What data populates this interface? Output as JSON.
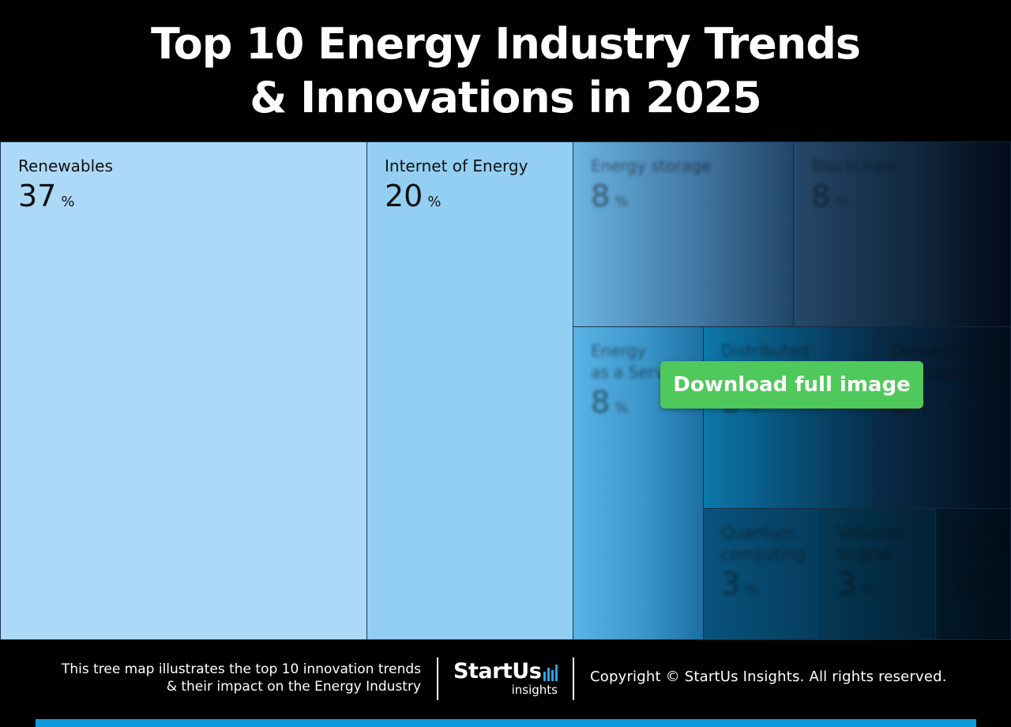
{
  "title": {
    "line1": "Top 10 Energy Industry Trends",
    "line2": "& Innovations in 2025"
  },
  "chart_data": {
    "type": "treemap",
    "value_suffix": "%",
    "items": [
      {
        "label": "Renewables",
        "value": 37,
        "color": "#acd9f7"
      },
      {
        "label": "Internet of Energy",
        "value": 20,
        "color": "#92cff3"
      },
      {
        "label": "Energy storage",
        "value": 8,
        "color": "#6cb6e4"
      },
      {
        "label": "Blockchain",
        "value": 8,
        "color": "#26486a"
      },
      {
        "label": "Energy\nas a Service",
        "value": 8,
        "color": "#52aee0"
      },
      {
        "label": "Distributed\nenergy",
        "value": 8,
        "color": "#0b6e9c"
      },
      {
        "label": "Demand-side\nmanagement",
        "value": 8,
        "color": "#0a3050"
      },
      {
        "label": "Quantum\ncomputing",
        "value": 3,
        "color": "#064a70"
      },
      {
        "label": "Vehicles-\nto-grid",
        "value": 3,
        "color": "#053752"
      },
      {
        "label": "Hydrogen\n& CCS",
        "value": 2,
        "color": "#021b2c"
      }
    ]
  },
  "download_button": {
    "label": "Download full image",
    "color": "#4fc95b"
  },
  "footer": {
    "caption_line1": "This tree map illustrates the top 10 innovation trends",
    "caption_line2": "& their impact on the Energy Industry",
    "logo_main": "StartUs",
    "logo_sub": "insights",
    "copyright": "Copyright © StartUs Insights. All rights reserved."
  },
  "colors": {
    "background": "#000000",
    "accent_bar": "#0c9ad9"
  }
}
